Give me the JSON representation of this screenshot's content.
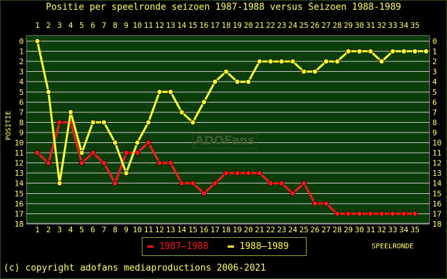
{
  "title": "Positie per speelronde seizoen 1987-1988 versus Seizoen 1988-1989",
  "watermark": "ADOFans",
  "copyright": "(c) copyright adofans mediaproductions 2006-2021",
  "colors": {
    "background": "#000000",
    "plot_background": "#0b3d0b",
    "grid": "#c8c8c8",
    "text": "#ffff66",
    "series_1987": "#ff1a1a",
    "series_1988": "#ffff33"
  },
  "chart_data": {
    "type": "line",
    "title": "Positie per speelronde seizoen 1987-1988 versus Seizoen 1988-1989",
    "xlabel": "SPEELRONDE",
    "ylabel": "POSITIE",
    "x_ticks": [
      1,
      2,
      3,
      4,
      5,
      6,
      7,
      8,
      9,
      10,
      11,
      12,
      13,
      14,
      15,
      16,
      17,
      18,
      19,
      20,
      21,
      22,
      23,
      24,
      25,
      26,
      27,
      28,
      29,
      30,
      31,
      32,
      33,
      34,
      35
    ],
    "y_ticks": [
      0,
      1,
      2,
      3,
      4,
      5,
      6,
      7,
      8,
      9,
      10,
      11,
      12,
      13,
      14,
      15,
      16,
      17,
      18
    ],
    "xlim": [
      0,
      36
    ],
    "ylim": [
      0,
      18
    ],
    "y_inverted": true,
    "grid": "horizontal",
    "legend_position": "bottom-center",
    "series": [
      {
        "name": "1987–1988",
        "color": "#ff1a1a",
        "x": [
          0,
          1,
          2,
          3,
          4,
          5,
          6,
          7,
          8,
          9,
          10,
          11,
          12,
          13,
          14,
          15,
          16,
          17,
          18,
          19,
          20,
          21,
          22,
          23,
          24,
          25,
          26,
          27,
          28,
          29,
          30,
          31,
          32,
          33,
          34
        ],
        "values": [
          11,
          12,
          8,
          8,
          12,
          11,
          12,
          14,
          11,
          11,
          10,
          12,
          12,
          14,
          14,
          15,
          14,
          13,
          13,
          13,
          13,
          14,
          14,
          15,
          14,
          16,
          16,
          17,
          17,
          17,
          17,
          17,
          17,
          17,
          17
        ]
      },
      {
        "name": "1988–1989",
        "color": "#ffff33",
        "x": [
          0,
          1,
          2,
          3,
          4,
          5,
          6,
          7,
          8,
          9,
          10,
          11,
          12,
          13,
          14,
          15,
          16,
          17,
          18,
          19,
          20,
          21,
          22,
          23,
          24,
          25,
          26,
          27,
          28,
          29,
          30,
          31,
          32,
          33,
          34,
          35
        ],
        "values": [
          0,
          5,
          14,
          7,
          11,
          8,
          8,
          10,
          13,
          10,
          8,
          5,
          5,
          7,
          8,
          6,
          4,
          3,
          4,
          4,
          2,
          2,
          2,
          2,
          3,
          3,
          2,
          2,
          1,
          1,
          1,
          2,
          1,
          1,
          1,
          1
        ]
      }
    ]
  }
}
